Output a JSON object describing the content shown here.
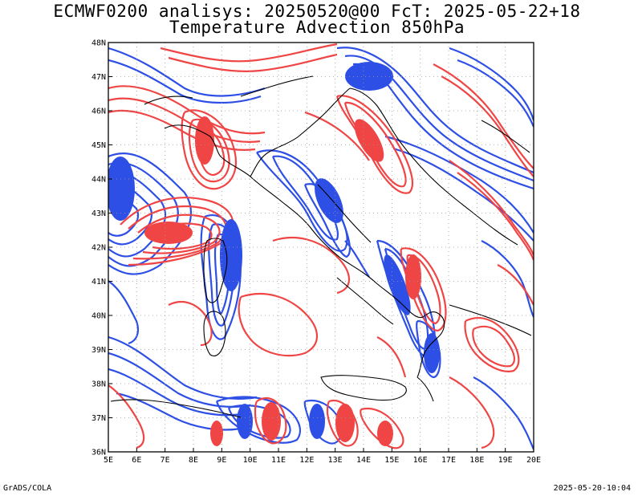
{
  "title": {
    "line1": "ECMWF0200 analisys: 20250520@00 FcT: 2025-05-22+18",
    "line2": "Temperature Advection 850hPa"
  },
  "footer": {
    "left": "GrADS/COLA",
    "right": "2025-05-20-10:04"
  },
  "map": {
    "lon_labels": [
      "5E",
      "6E",
      "7E",
      "8E",
      "9E",
      "10E",
      "11E",
      "12E",
      "13E",
      "14E",
      "15E",
      "16E",
      "17E",
      "18E",
      "19E",
      "20E"
    ],
    "lat_labels": [
      "48N",
      "47N",
      "46N",
      "45N",
      "44N",
      "43N",
      "42N",
      "41N",
      "40N",
      "39N",
      "38N",
      "37N",
      "36N"
    ],
    "extent": {
      "lon": [
        5,
        20
      ],
      "lat": [
        36,
        48
      ]
    },
    "colors": {
      "warm": "#f04545",
      "cold": "#2d4fe6",
      "coast": "#000000",
      "grid": "#9a9a9a"
    }
  }
}
